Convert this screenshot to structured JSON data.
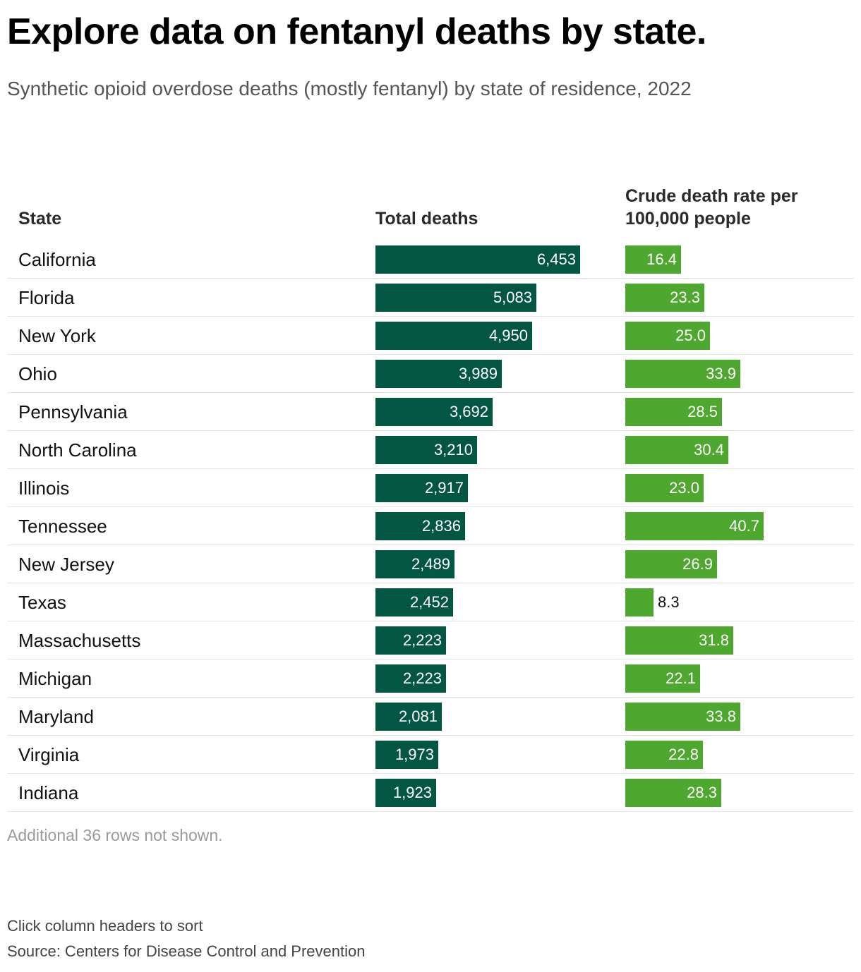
{
  "title": "Explore data on fentanyl deaths by state.",
  "subtitle": "Synthetic opioid overdose deaths (mostly fentanyl) by state of residence, 2022",
  "columns": {
    "state": "State",
    "deaths": "Total deaths",
    "rate": "Crude death rate per 100,000 people"
  },
  "note": "Additional 36 rows not shown.",
  "instructions": "Click column headers to sort",
  "source": "Source: Centers for Disease Control and Prevention",
  "colors": {
    "deaths_bar": "#035642",
    "rate_bar": "#4ea72e"
  },
  "chart_data": {
    "type": "table",
    "deaths_max": 6453,
    "rate_max": 40.7,
    "rows": [
      {
        "state": "California",
        "deaths": 6453,
        "deaths_label": "6,453",
        "rate": 16.4,
        "rate_label": "16.4"
      },
      {
        "state": "Florida",
        "deaths": 5083,
        "deaths_label": "5,083",
        "rate": 23.3,
        "rate_label": "23.3"
      },
      {
        "state": "New York",
        "deaths": 4950,
        "deaths_label": "4,950",
        "rate": 25.0,
        "rate_label": "25.0"
      },
      {
        "state": "Ohio",
        "deaths": 3989,
        "deaths_label": "3,989",
        "rate": 33.9,
        "rate_label": "33.9"
      },
      {
        "state": "Pennsylvania",
        "deaths": 3692,
        "deaths_label": "3,692",
        "rate": 28.5,
        "rate_label": "28.5"
      },
      {
        "state": "North Carolina",
        "deaths": 3210,
        "deaths_label": "3,210",
        "rate": 30.4,
        "rate_label": "30.4"
      },
      {
        "state": "Illinois",
        "deaths": 2917,
        "deaths_label": "2,917",
        "rate": 23.0,
        "rate_label": "23.0"
      },
      {
        "state": "Tennessee",
        "deaths": 2836,
        "deaths_label": "2,836",
        "rate": 40.7,
        "rate_label": "40.7"
      },
      {
        "state": "New Jersey",
        "deaths": 2489,
        "deaths_label": "2,489",
        "rate": 26.9,
        "rate_label": "26.9"
      },
      {
        "state": "Texas",
        "deaths": 2452,
        "deaths_label": "2,452",
        "rate": 8.3,
        "rate_label": "8.3"
      },
      {
        "state": "Massachusetts",
        "deaths": 2223,
        "deaths_label": "2,223",
        "rate": 31.8,
        "rate_label": "31.8"
      },
      {
        "state": "Michigan",
        "deaths": 2223,
        "deaths_label": "2,223",
        "rate": 22.1,
        "rate_label": "22.1"
      },
      {
        "state": "Maryland",
        "deaths": 2081,
        "deaths_label": "2,081",
        "rate": 33.8,
        "rate_label": "33.8"
      },
      {
        "state": "Virginia",
        "deaths": 1973,
        "deaths_label": "1,973",
        "rate": 22.8,
        "rate_label": "22.8"
      },
      {
        "state": "Indiana",
        "deaths": 1923,
        "deaths_label": "1,923",
        "rate": 28.3,
        "rate_label": "28.3"
      }
    ]
  }
}
